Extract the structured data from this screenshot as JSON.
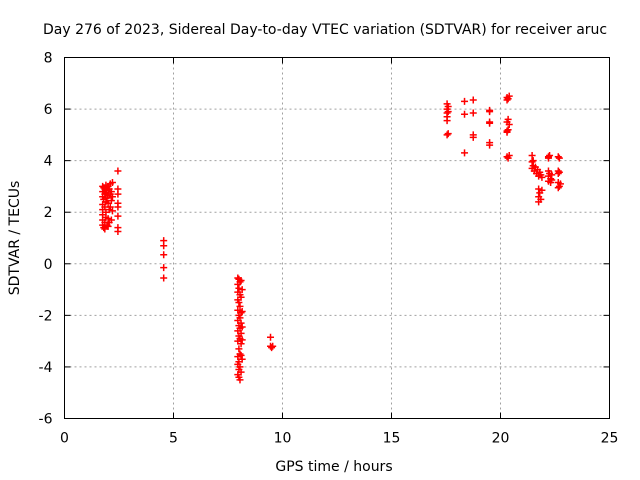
{
  "chart_data": {
    "type": "scatter",
    "title": "Day 276 of 2023, Sidereal Day-to-day VTEC variation (SDTVAR) for receiver aruc",
    "xlabel": "GPS time / hours",
    "ylabel": "SDTVAR / TECUs",
    "xlim": [
      0,
      25
    ],
    "ylim": [
      -6,
      8
    ],
    "x_ticks": [
      0,
      5,
      10,
      15,
      20,
      25
    ],
    "y_ticks": [
      -6,
      -4,
      -2,
      0,
      2,
      4,
      6,
      8
    ],
    "x_tick_labels": [
      "0",
      "5",
      "10",
      "15",
      "20",
      "25"
    ],
    "y_tick_labels": [
      "-6",
      "-4",
      "-2",
      "0",
      "2",
      "4",
      "6",
      "8"
    ],
    "grid": true,
    "marker": "+",
    "marker_color": "#ff0000",
    "series": [
      {
        "name": "SDTVAR",
        "points": [
          [
            1.75,
            3.0
          ],
          [
            1.75,
            2.8
          ],
          [
            1.75,
            2.6
          ],
          [
            1.75,
            2.3
          ],
          [
            1.75,
            2.1
          ],
          [
            1.75,
            1.9
          ],
          [
            1.75,
            1.7
          ],
          [
            1.75,
            1.5
          ],
          [
            1.8,
            2.95
          ],
          [
            1.8,
            2.5
          ],
          [
            1.8,
            1.4
          ],
          [
            1.85,
            2.9
          ],
          [
            1.85,
            2.7
          ],
          [
            1.85,
            2.2
          ],
          [
            1.85,
            1.6
          ],
          [
            1.85,
            1.35
          ],
          [
            1.9,
            3.05
          ],
          [
            1.9,
            2.75
          ],
          [
            1.9,
            2.4
          ],
          [
            1.9,
            2.0
          ],
          [
            1.9,
            1.8
          ],
          [
            1.95,
            2.85
          ],
          [
            1.95,
            2.55
          ],
          [
            1.95,
            1.5
          ],
          [
            2.0,
            3.0
          ],
          [
            2.0,
            2.65
          ],
          [
            2.0,
            2.35
          ],
          [
            2.0,
            1.75
          ],
          [
            2.0,
            1.45
          ],
          [
            2.05,
            2.9
          ],
          [
            2.05,
            2.1
          ],
          [
            2.05,
            1.6
          ],
          [
            2.1,
            3.1
          ],
          [
            2.1,
            2.7
          ],
          [
            2.1,
            2.2
          ],
          [
            2.15,
            2.8
          ],
          [
            2.15,
            2.45
          ],
          [
            2.15,
            1.7
          ],
          [
            2.2,
            3.15
          ],
          [
            2.2,
            2.6
          ],
          [
            2.2,
            2.05
          ],
          [
            2.45,
            3.6
          ],
          [
            2.45,
            2.9
          ],
          [
            2.45,
            2.7
          ],
          [
            2.45,
            2.35
          ],
          [
            2.45,
            2.2
          ],
          [
            2.45,
            1.85
          ],
          [
            2.45,
            1.4
          ],
          [
            2.45,
            1.25
          ],
          [
            4.55,
            0.9
          ],
          [
            4.55,
            0.7
          ],
          [
            4.55,
            0.35
          ],
          [
            4.55,
            -0.15
          ],
          [
            4.55,
            -0.55
          ],
          [
            7.95,
            -0.55
          ],
          [
            7.95,
            -0.8
          ],
          [
            7.95,
            -1.1
          ],
          [
            7.95,
            -1.4
          ],
          [
            7.95,
            -1.8
          ],
          [
            7.95,
            -2.2
          ],
          [
            7.95,
            -2.6
          ],
          [
            7.95,
            -3.0
          ],
          [
            7.95,
            -3.6
          ],
          [
            7.95,
            -3.9
          ],
          [
            7.95,
            -4.3
          ],
          [
            8.0,
            -0.6
          ],
          [
            8.0,
            -0.95
          ],
          [
            8.0,
            -1.5
          ],
          [
            8.0,
            -2.0
          ],
          [
            8.0,
            -2.4
          ],
          [
            8.0,
            -2.8
          ],
          [
            8.0,
            -3.3
          ],
          [
            8.0,
            -3.8
          ],
          [
            8.0,
            -4.1
          ],
          [
            8.0,
            -4.4
          ],
          [
            8.05,
            -0.7
          ],
          [
            8.05,
            -1.2
          ],
          [
            8.05,
            -1.65
          ],
          [
            8.05,
            -2.1
          ],
          [
            8.05,
            -2.5
          ],
          [
            8.05,
            -2.9
          ],
          [
            8.05,
            -3.5
          ],
          [
            8.05,
            -4.0
          ],
          [
            8.05,
            -4.5
          ],
          [
            8.1,
            -0.65
          ],
          [
            8.1,
            -1.3
          ],
          [
            8.1,
            -1.9
          ],
          [
            8.1,
            -2.3
          ],
          [
            8.1,
            -2.7
          ],
          [
            8.1,
            -3.1
          ],
          [
            8.1,
            -3.55
          ],
          [
            8.1,
            -4.2
          ],
          [
            8.15,
            -1.0
          ],
          [
            8.15,
            -1.85
          ],
          [
            8.15,
            -2.45
          ],
          [
            8.15,
            -2.95
          ],
          [
            8.15,
            -3.7
          ],
          [
            9.45,
            -2.85
          ],
          [
            9.45,
            -3.2
          ],
          [
            9.5,
            -3.25
          ],
          [
            9.55,
            -3.2
          ],
          [
            17.55,
            6.2
          ],
          [
            17.55,
            6.0
          ],
          [
            17.55,
            5.85
          ],
          [
            17.55,
            5.7
          ],
          [
            17.55,
            5.55
          ],
          [
            17.55,
            5.0
          ],
          [
            17.6,
            6.1
          ],
          [
            17.6,
            5.9
          ],
          [
            17.6,
            5.05
          ],
          [
            18.35,
            6.3
          ],
          [
            18.35,
            5.8
          ],
          [
            18.35,
            4.3
          ],
          [
            18.75,
            6.35
          ],
          [
            18.75,
            5.85
          ],
          [
            18.75,
            5.0
          ],
          [
            18.75,
            4.9
          ],
          [
            19.5,
            5.95
          ],
          [
            19.5,
            5.9
          ],
          [
            19.5,
            5.5
          ],
          [
            19.5,
            5.45
          ],
          [
            19.5,
            4.7
          ],
          [
            19.5,
            4.6
          ],
          [
            20.3,
            6.45
          ],
          [
            20.3,
            6.35
          ],
          [
            20.3,
            5.5
          ],
          [
            20.3,
            5.15
          ],
          [
            20.3,
            5.1
          ],
          [
            20.3,
            4.15
          ],
          [
            20.35,
            6.4
          ],
          [
            20.35,
            5.6
          ],
          [
            20.35,
            5.2
          ],
          [
            20.35,
            4.1
          ],
          [
            20.4,
            6.5
          ],
          [
            20.4,
            5.4
          ],
          [
            20.4,
            4.2
          ],
          [
            21.45,
            4.2
          ],
          [
            21.45,
            3.95
          ],
          [
            21.45,
            3.7
          ],
          [
            21.5,
            4.0
          ],
          [
            21.5,
            3.8
          ],
          [
            21.55,
            3.6
          ],
          [
            21.6,
            3.75
          ],
          [
            21.65,
            3.5
          ],
          [
            21.7,
            3.65
          ],
          [
            21.75,
            3.4
          ],
          [
            21.75,
            2.9
          ],
          [
            21.75,
            2.6
          ],
          [
            21.75,
            2.4
          ],
          [
            21.8,
            3.55
          ],
          [
            21.8,
            2.75
          ],
          [
            21.85,
            3.45
          ],
          [
            21.85,
            2.5
          ],
          [
            21.9,
            3.35
          ],
          [
            21.9,
            2.85
          ],
          [
            22.2,
            4.15
          ],
          [
            22.2,
            4.1
          ],
          [
            22.2,
            3.6
          ],
          [
            22.2,
            3.4
          ],
          [
            22.2,
            3.2
          ],
          [
            22.25,
            4.2
          ],
          [
            22.25,
            3.5
          ],
          [
            22.3,
            3.3
          ],
          [
            22.3,
            3.15
          ],
          [
            22.35,
            3.45
          ],
          [
            22.35,
            3.25
          ],
          [
            22.65,
            4.15
          ],
          [
            22.65,
            3.6
          ],
          [
            22.65,
            3.5
          ],
          [
            22.65,
            3.15
          ],
          [
            22.65,
            2.95
          ],
          [
            22.7,
            4.1
          ],
          [
            22.7,
            3.55
          ],
          [
            22.7,
            3.0
          ],
          [
            22.75,
            3.1
          ]
        ]
      }
    ]
  }
}
